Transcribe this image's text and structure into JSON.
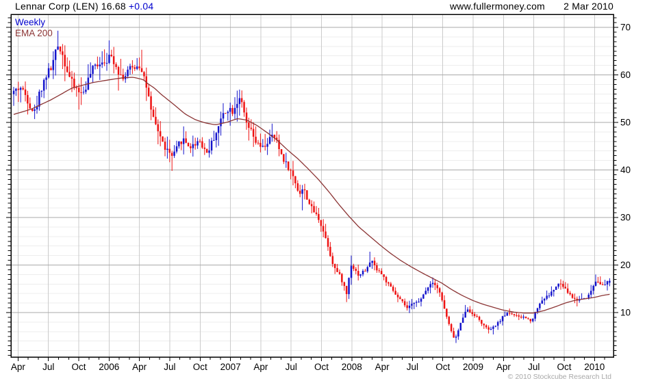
{
  "header": {
    "title_main": "Lennar Corp (LEN) 16.68",
    "title_change": "+0.04",
    "site": "www.fullermoney.com",
    "date": "2 Mar 2010"
  },
  "legend": {
    "timeframe": "Weekly",
    "overlay": "EMA 200"
  },
  "footer": {
    "copyright": "© 2010 Stockcube Research Ltd"
  },
  "colors": {
    "up_candle": "#1414cc",
    "down_candle": "#ee1212",
    "ema_line": "#8b3434",
    "legend_blue": "#0000cd",
    "grid_minor": "#ededed",
    "grid_major": "#a9a9a9",
    "grid_vert": "#cbcbcb",
    "frame": "#000000",
    "copyright_gray": "#a8a8a8"
  },
  "chart_data": {
    "type": "candlestick",
    "title": "Lennar Corp (LEN) 16.68 +0.04",
    "instrument": "Lennar Corp (LEN)",
    "last_price": 16.68,
    "change": "+0.04",
    "timeframe": "Weekly",
    "overlay": "EMA 200",
    "grid": true,
    "x_axis": {
      "start": "2005-04",
      "end": "2010-03",
      "label_step_months": 3,
      "quarter_labels": [
        "Apr",
        "Jul",
        "Oct",
        "2006",
        "Apr",
        "Jul",
        "Oct",
        "2007",
        "Apr",
        "Jul",
        "Oct",
        "2008",
        "Apr",
        "Jul",
        "Oct",
        "2009",
        "Apr",
        "Jul",
        "Oct",
        "2010"
      ]
    },
    "y_axis": {
      "min": 1,
      "max": 72,
      "tick_labels": [
        70,
        60,
        50,
        40,
        30,
        20,
        10
      ],
      "minor_gridline_step": 2,
      "tick_step": 1
    },
    "close_keyframes_months_price": [
      [
        -0.4,
        56.5
      ],
      [
        0.2,
        57.5
      ],
      [
        0.8,
        55.5
      ],
      [
        1.3,
        53
      ],
      [
        1.7,
        52.2
      ],
      [
        2.1,
        56
      ],
      [
        2.5,
        58.5
      ],
      [
        2.9,
        60.5
      ],
      [
        3.3,
        61.5
      ],
      [
        3.7,
        64.5
      ],
      [
        4.0,
        66.5
      ],
      [
        4.3,
        65
      ],
      [
        4.7,
        62
      ],
      [
        5.1,
        59.5
      ],
      [
        5.5,
        57.5
      ],
      [
        5.9,
        57
      ],
      [
        6.3,
        55.8
      ],
      [
        6.7,
        57.5
      ],
      [
        7.1,
        60
      ],
      [
        7.5,
        61.5
      ],
      [
        7.9,
        62.5
      ],
      [
        8.4,
        63
      ],
      [
        8.9,
        63.5
      ],
      [
        9.3,
        63.8
      ],
      [
        9.7,
        62
      ],
      [
        10.1,
        60
      ],
      [
        10.5,
        59.5
      ],
      [
        10.9,
        61
      ],
      [
        11.4,
        61.5
      ],
      [
        11.9,
        62.3
      ],
      [
        12.3,
        61
      ],
      [
        12.8,
        56.5
      ],
      [
        13.2,
        51.5
      ],
      [
        13.6,
        49.5
      ],
      [
        14.0,
        47.5
      ],
      [
        14.4,
        45
      ],
      [
        14.8,
        44
      ],
      [
        15.2,
        42.8
      ],
      [
        15.5,
        43.5
      ],
      [
        15.9,
        45.5
      ],
      [
        16.3,
        46.5
      ],
      [
        16.7,
        45.5
      ],
      [
        17.1,
        44.8
      ],
      [
        17.5,
        45.5
      ],
      [
        17.9,
        46.5
      ],
      [
        18.3,
        44.8
      ],
      [
        18.7,
        43.6
      ],
      [
        19.1,
        45.5
      ],
      [
        19.5,
        47.5
      ],
      [
        19.9,
        49.5
      ],
      [
        20.3,
        52
      ],
      [
        20.8,
        53
      ],
      [
        21.2,
        52.5
      ],
      [
        21.6,
        54
      ],
      [
        21.9,
        55.5
      ],
      [
        22.2,
        53
      ],
      [
        22.6,
        49.5
      ],
      [
        23.0,
        48.2
      ],
      [
        23.4,
        46.2
      ],
      [
        23.8,
        45
      ],
      [
        24.2,
        44.6
      ],
      [
        24.6,
        45.6
      ],
      [
        25.0,
        47
      ],
      [
        25.4,
        46.8
      ],
      [
        25.8,
        44.5
      ],
      [
        26.2,
        42.5
      ],
      [
        26.6,
        41
      ],
      [
        27.0,
        39.5
      ],
      [
        27.4,
        37.5
      ],
      [
        27.8,
        35
      ],
      [
        28.2,
        36.2
      ],
      [
        28.6,
        34
      ],
      [
        29.0,
        32
      ],
      [
        29.4,
        30.8
      ],
      [
        29.8,
        29.5
      ],
      [
        30.2,
        27
      ],
      [
        30.6,
        24.5
      ],
      [
        31.0,
        21
      ],
      [
        31.4,
        19
      ],
      [
        31.8,
        17.8
      ],
      [
        32.2,
        15.8
      ],
      [
        32.5,
        13.8
      ],
      [
        32.9,
        20.3
      ],
      [
        33.3,
        19
      ],
      [
        33.7,
        17.8
      ],
      [
        34.1,
        18.6
      ],
      [
        34.5,
        19
      ],
      [
        34.9,
        21.3
      ],
      [
        35.3,
        19.5
      ],
      [
        35.7,
        18.8
      ],
      [
        36.1,
        17.6
      ],
      [
        36.5,
        16.2
      ],
      [
        37.0,
        14.8
      ],
      [
        37.5,
        13.2
      ],
      [
        38.0,
        12.2
      ],
      [
        38.5,
        10.8
      ],
      [
        38.9,
        11.6
      ],
      [
        39.3,
        12.6
      ],
      [
        39.7,
        12.1
      ],
      [
        40.1,
        13.8
      ],
      [
        40.5,
        15.4
      ],
      [
        40.9,
        16.4
      ],
      [
        41.3,
        16
      ],
      [
        41.7,
        14.2
      ],
      [
        42.1,
        11.2
      ],
      [
        42.5,
        8.2
      ],
      [
        42.9,
        5.6
      ],
      [
        43.2,
        4.3
      ],
      [
        43.5,
        6
      ],
      [
        43.9,
        8.6
      ],
      [
        44.3,
        10.8
      ],
      [
        44.7,
        10.1
      ],
      [
        45.1,
        9.6
      ],
      [
        45.5,
        8.7
      ],
      [
        45.9,
        7.6
      ],
      [
        46.3,
        6.7
      ],
      [
        46.7,
        6.3
      ],
      [
        47.1,
        7.1
      ],
      [
        47.5,
        7.9
      ],
      [
        47.9,
        9
      ],
      [
        48.4,
        10
      ],
      [
        48.8,
        9.8
      ],
      [
        49.2,
        9.3
      ],
      [
        49.6,
        8.9
      ],
      [
        50.0,
        9.1
      ],
      [
        50.4,
        8.6
      ],
      [
        50.8,
        8.3
      ],
      [
        51.2,
        10.4
      ],
      [
        51.6,
        12
      ],
      [
        52.0,
        13
      ],
      [
        52.4,
        13.5
      ],
      [
        52.8,
        14.4
      ],
      [
        53.2,
        15.4
      ],
      [
        53.6,
        16.2
      ],
      [
        54.0,
        15.1
      ],
      [
        54.4,
        14.2
      ],
      [
        54.8,
        13.2
      ],
      [
        55.2,
        12.6
      ],
      [
        55.6,
        12.9
      ],
      [
        56.0,
        13.1
      ],
      [
        56.4,
        13.5
      ],
      [
        56.8,
        15.3
      ],
      [
        57.2,
        17
      ],
      [
        57.6,
        16.1
      ],
      [
        57.9,
        15.4
      ],
      [
        58.2,
        16.3
      ],
      [
        58.5,
        16.68
      ]
    ],
    "ema_keyframes_months_price": [
      [
        -0.7,
        51.5
      ],
      [
        1.3,
        52.8
      ],
      [
        3.3,
        54.8
      ],
      [
        5.3,
        57.2
      ],
      [
        7.4,
        58.4
      ],
      [
        9.4,
        59.1
      ],
      [
        10.4,
        59.4
      ],
      [
        11.4,
        59.5
      ],
      [
        12.4,
        59.0
      ],
      [
        12.8,
        58.2
      ],
      [
        13.5,
        57.2
      ],
      [
        14.1,
        56.0
      ],
      [
        14.8,
        54.8
      ],
      [
        15.5,
        53.6
      ],
      [
        16.5,
        51.8
      ],
      [
        17.5,
        50.6
      ],
      [
        18.5,
        49.9
      ],
      [
        19.5,
        49.5
      ],
      [
        20.6,
        50.0
      ],
      [
        21.7,
        50.8
      ],
      [
        22.6,
        50.5
      ],
      [
        23.6,
        49.4
      ],
      [
        24.6,
        47.9
      ],
      [
        25.6,
        46.3
      ],
      [
        26.6,
        44.3
      ],
      [
        27.7,
        42.3
      ],
      [
        28.7,
        40.2
      ],
      [
        29.7,
        38.0
      ],
      [
        30.7,
        35.5
      ],
      [
        31.7,
        32.8
      ],
      [
        32.7,
        30.3
      ],
      [
        33.7,
        28.0
      ],
      [
        34.8,
        26.0
      ],
      [
        35.8,
        24.2
      ],
      [
        36.8,
        22.5
      ],
      [
        37.8,
        21.0
      ],
      [
        38.8,
        19.7
      ],
      [
        39.9,
        18.4
      ],
      [
        40.9,
        17.3
      ],
      [
        41.9,
        16.2
      ],
      [
        42.9,
        14.8
      ],
      [
        43.9,
        13.6
      ],
      [
        44.9,
        12.6
      ],
      [
        45.9,
        11.8
      ],
      [
        47.0,
        11.1
      ],
      [
        48.0,
        10.5
      ],
      [
        49.0,
        10.1
      ],
      [
        50.0,
        9.9
      ],
      [
        51.0,
        9.9
      ],
      [
        52.0,
        10.4
      ],
      [
        53.1,
        11.2
      ],
      [
        54.1,
        12.0
      ],
      [
        55.1,
        12.6
      ],
      [
        56.1,
        12.9
      ],
      [
        57.0,
        13.2
      ],
      [
        57.8,
        13.6
      ],
      [
        58.7,
        13.9
      ]
    ],
    "wick_extremes": [
      {
        "m": 1.6,
        "low": 50.7
      },
      {
        "m": 4.0,
        "high": 69.3
      },
      {
        "m": 5.9,
        "low": 52.7
      },
      {
        "m": 9.5,
        "high": 65.7
      },
      {
        "m": 12.2,
        "high": 65.3
      },
      {
        "m": 15.2,
        "low": 39.8
      },
      {
        "m": 18.8,
        "low": 42.6
      },
      {
        "m": 21.9,
        "high": 56.9
      },
      {
        "m": 28.2,
        "low": 31.5
      },
      {
        "m": 32.5,
        "low": 12.2
      },
      {
        "m": 32.9,
        "high": 22.0
      },
      {
        "m": 34.9,
        "high": 22.8
      },
      {
        "m": 38.6,
        "low": 9.9
      },
      {
        "m": 41.0,
        "high": 17.4
      },
      {
        "m": 43.2,
        "low": 3.6
      },
      {
        "m": 44.3,
        "high": 11.6
      },
      {
        "m": 46.9,
        "low": 5.4
      },
      {
        "m": 53.7,
        "high": 17.0
      },
      {
        "m": 55.2,
        "low": 11.3
      },
      {
        "m": 57.2,
        "high": 18.0
      }
    ]
  }
}
